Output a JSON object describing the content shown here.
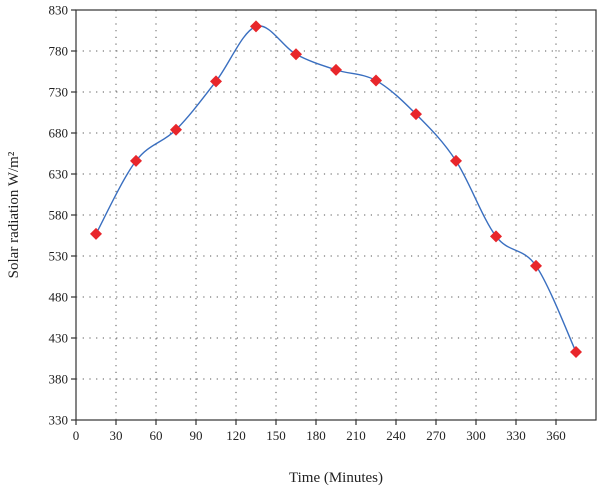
{
  "chart_data": {
    "type": "line",
    "xlabel": "Time (Minutes)",
    "ylabel": "Solar radiation W/m²",
    "xlim": [
      0,
      390
    ],
    "ylim": [
      330,
      830
    ],
    "xticks": [
      0,
      30,
      60,
      90,
      120,
      150,
      180,
      210,
      240,
      270,
      300,
      330,
      360
    ],
    "yticks": [
      330,
      380,
      430,
      480,
      530,
      580,
      630,
      680,
      730,
      780,
      830
    ],
    "grid": true,
    "line_color": "#3a6fc0",
    "marker_color": "#e8262b",
    "marker": "diamond",
    "series": [
      {
        "x": [
          15,
          45,
          75,
          105,
          135,
          165,
          195,
          225,
          255,
          285,
          315,
          345,
          375
        ],
        "y": [
          557,
          646,
          684,
          743,
          810,
          776,
          757,
          744,
          703,
          646,
          554,
          518,
          413
        ]
      }
    ]
  }
}
